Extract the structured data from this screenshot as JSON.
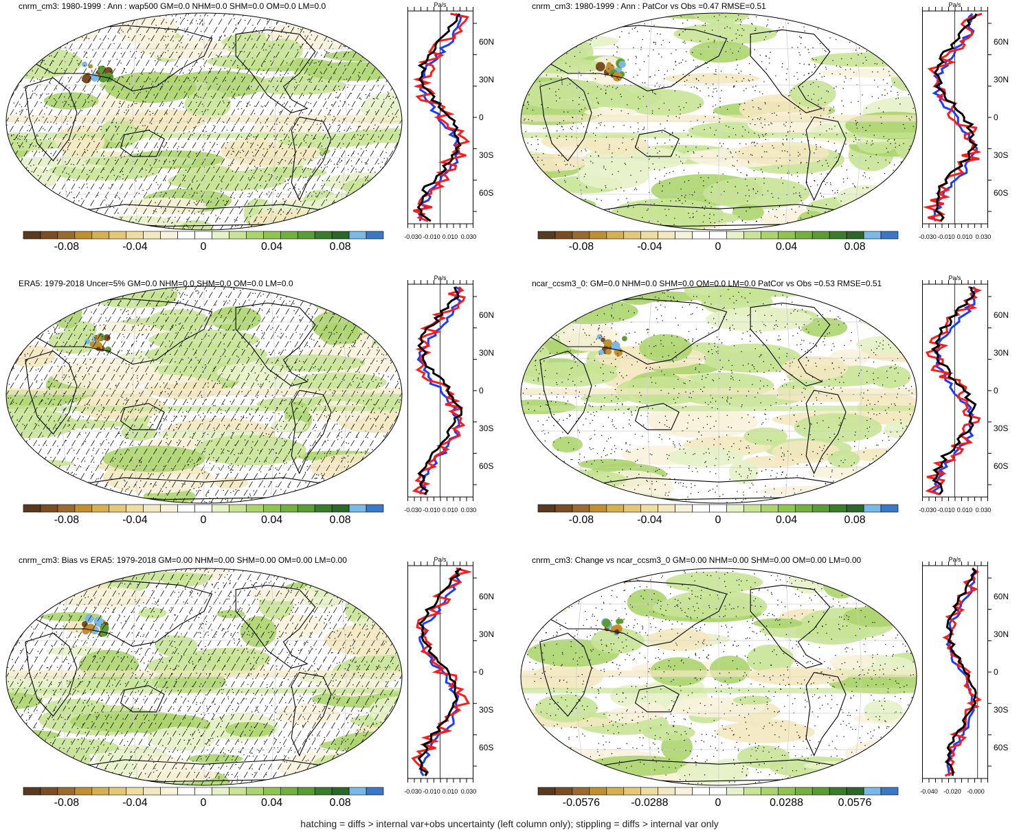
{
  "colors": {
    "palette": [
      "#5a3a1e",
      "#7a4e24",
      "#9a6a2e",
      "#c09030",
      "#d4b050",
      "#e4c878",
      "#eedca0",
      "#f4e8c0",
      "#f8f2dc",
      "#ffffff",
      "#ffffff",
      "#e6f2c8",
      "#c8e496",
      "#acd46e",
      "#90c450",
      "#74b040",
      "#5c9c34",
      "#3c7a2c",
      "#2c6628",
      "#7ab8e8",
      "#3a78c8"
    ],
    "map_land": "#f7efcf",
    "map_green": "#a9d46c",
    "map_tan": "#ecdca4",
    "model_line": "#ff1a1a",
    "obs_line": "#1a3cff",
    "ref_line": "#000000"
  },
  "panels": [
    {
      "title": "cnrm_cm3: 1980-1999 : Ann : wap500 GM=0.0 NHM=0.0 SHM=0.0 OM=0.0 LM=0.0",
      "hatch": true,
      "cbar_labels": [
        "-0.08",
        "-0.04",
        "0",
        "0.04",
        "0.08"
      ],
      "profile_unit": "Pa/s",
      "profile_lat_labels": [
        "60N",
        "30N",
        "0",
        "30S",
        "60S"
      ],
      "profile_x_labels": [
        "-0.030",
        "-0.010",
        "0.010",
        "0.030"
      ]
    },
    {
      "title": "cnrm_cm3: 1980-1999 : Ann : PatCor vs Obs =0.47 RMSE=0.51",
      "hatch": false,
      "cbar_labels": [
        "-0.08",
        "-0.04",
        "0",
        "0.04",
        "0.08"
      ],
      "profile_unit": "Pa/s",
      "profile_lat_labels": [
        "60N",
        "30N",
        "0",
        "30S",
        "60S"
      ],
      "profile_x_labels": [
        "-0.030",
        "-0.010",
        "0.010",
        "0.030"
      ]
    },
    {
      "title": "ERA5: 1979-2018 Uncer=5% GM=0.0 NHM=0.0 SHM=0.0 OM=0.0 LM=0.0",
      "hatch": true,
      "cbar_labels": [
        "-0.08",
        "-0.04",
        "0",
        "0.04",
        "0.08"
      ],
      "profile_unit": "Pa/s",
      "profile_lat_labels": [
        "60N",
        "30N",
        "0",
        "30S",
        "60S"
      ],
      "profile_x_labels": [
        "-0.030",
        "-0.010",
        "0.010",
        "0.030"
      ]
    },
    {
      "title": "ncar_ccsm3_0: GM=0.0 NHM=0.0 SHM=0.0 OM=0.0 LM=0.0 PatCor vs Obs =0.53 RMSE=0.51",
      "hatch": false,
      "cbar_labels": [
        "-0.08",
        "-0.04",
        "0",
        "0.04",
        "0.08"
      ],
      "profile_unit": "Pa/s",
      "profile_lat_labels": [
        "60N",
        "30N",
        "0",
        "30S",
        "60S"
      ],
      "profile_x_labels": [
        "-0.030",
        "-0.010",
        "0.010",
        "0.030"
      ]
    },
    {
      "title": "cnrm_cm3: Bias vs ERA5: 1979-2018 GM=0.00 NHM=0.00 SHM=0.00 OM=0.00 LM=0.00",
      "hatch": true,
      "cbar_labels": [
        "-0.08",
        "-0.04",
        "0",
        "0.04",
        "0.08"
      ],
      "profile_unit": "Pa/s",
      "profile_lat_labels": [
        "60N",
        "30N",
        "0",
        "30S",
        "60S"
      ],
      "profile_x_labels": [
        "-0.030",
        "-0.010",
        "0.010",
        "0.030"
      ]
    },
    {
      "title": "cnrm_cm3: Change vs ncar_ccsm3_0 GM=0.00 NHM=0.00 SHM=0.00 OM=0.00 LM=0.00",
      "hatch": false,
      "cbar_labels": [
        "-0.0576",
        "-0.0288",
        "0",
        "0.0288",
        "0.0576"
      ],
      "profile_unit": "Pa/s",
      "profile_lat_labels": [
        "60N",
        "30N",
        "0",
        "30S",
        "60S"
      ],
      "profile_x_labels": [
        "-0.040",
        "-0.020",
        "-0.000"
      ]
    }
  ],
  "footer": "hatching = diffs > internal var+obs uncertainty (left column only); stippling = diffs > internal var only"
}
